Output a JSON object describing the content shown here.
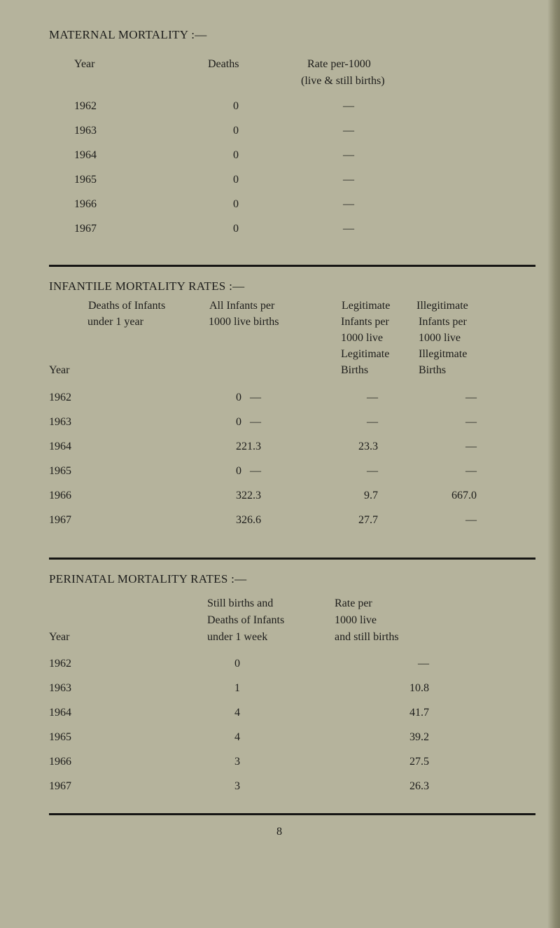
{
  "maternal": {
    "title": "MATERNAL MORTALITY :—",
    "headers": {
      "year": "Year",
      "deaths": "Deaths",
      "rate_line1": "Rate per-1000",
      "rate_line2": "(live & still births)"
    },
    "rows": [
      {
        "year": "1962",
        "deaths": "0",
        "rate": "—"
      },
      {
        "year": "1963",
        "deaths": "0",
        "rate": "—"
      },
      {
        "year": "1964",
        "deaths": "0",
        "rate": "—"
      },
      {
        "year": "1965",
        "deaths": "0",
        "rate": "—"
      },
      {
        "year": "1966",
        "deaths": "0",
        "rate": "—"
      },
      {
        "year": "1967",
        "deaths": "0",
        "rate": "—"
      }
    ]
  },
  "infantile": {
    "title": "INFANTILE MORTALITY RATES :—",
    "headers": {
      "year": "Year",
      "deaths": [
        "Deaths of Infants",
        "under 1 year"
      ],
      "all": [
        "All Infants per",
        "1000 live births"
      ],
      "legit": [
        "Legitimate",
        "Infants per",
        "1000 live",
        "Legitimate",
        "Births"
      ],
      "illeg": [
        "Illegitimate",
        "Infants per",
        "1000 live",
        "Illegitmate",
        "Births"
      ]
    },
    "rows": [
      {
        "year": "1962",
        "deaths": "0",
        "all": "—",
        "legit": "—",
        "illeg": "—"
      },
      {
        "year": "1963",
        "deaths": "0",
        "all": "—",
        "legit": "—",
        "illeg": "—"
      },
      {
        "year": "1964",
        "deaths": "2",
        "all": "21.3",
        "legit": "23.3",
        "illeg": "—"
      },
      {
        "year": "1965",
        "deaths": "0",
        "all": "—",
        "legit": "—",
        "illeg": "—"
      },
      {
        "year": "1966",
        "deaths": "3",
        "all": "22.3",
        "legit": "9.7",
        "illeg": "667.0"
      },
      {
        "year": "1967",
        "deaths": "3",
        "all": "26.6",
        "legit": "27.7",
        "illeg": "—"
      }
    ]
  },
  "perinatal": {
    "title": "PERINATAL MORTALITY RATES :—",
    "headers": {
      "year": "Year",
      "deaths": [
        "Still births and",
        "Deaths of Infants",
        "under 1 week"
      ],
      "rate": [
        "Rate per",
        "1000 live",
        "and still births"
      ]
    },
    "rows": [
      {
        "year": "1962",
        "deaths": "0",
        "rate": "—"
      },
      {
        "year": "1963",
        "deaths": "1",
        "rate": "10.8"
      },
      {
        "year": "1964",
        "deaths": "4",
        "rate": "41.7"
      },
      {
        "year": "1965",
        "deaths": "4",
        "rate": "39.2"
      },
      {
        "year": "1966",
        "deaths": "3",
        "rate": "27.5"
      },
      {
        "year": "1967",
        "deaths": "3",
        "rate": "26.3"
      }
    ]
  },
  "page_number": "8"
}
